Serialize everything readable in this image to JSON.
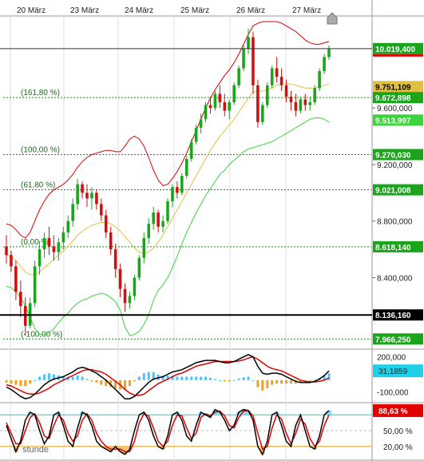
{
  "chart_data": {
    "type": "candlestick",
    "x_labels": [
      "20 März",
      "23 März",
      "24 März",
      "25 März",
      "26 März",
      "27 März"
    ],
    "price_ticks": [
      "8.400,000",
      "8.800,000",
      "9.200,000",
      "9.600,000"
    ],
    "price_range": [
      7900,
      10250
    ],
    "candles": [
      [
        8620,
        8700,
        8500,
        8560
      ],
      [
        8560,
        8590,
        8440,
        8480
      ],
      [
        8480,
        8520,
        8240,
        8300
      ],
      [
        8300,
        8380,
        8120,
        8200
      ],
      [
        8200,
        8260,
        7990,
        8060
      ],
      [
        8060,
        8260,
        8040,
        8220
      ],
      [
        8220,
        8520,
        8190,
        8480
      ],
      [
        8480,
        8660,
        8420,
        8600
      ],
      [
        8600,
        8720,
        8540,
        8680
      ],
      [
        8680,
        8760,
        8560,
        8620
      ],
      [
        8620,
        8700,
        8520,
        8580
      ],
      [
        8580,
        8680,
        8520,
        8650
      ],
      [
        8650,
        8760,
        8600,
        8720
      ],
      [
        8720,
        8840,
        8680,
        8800
      ],
      [
        8800,
        8960,
        8760,
        8920
      ],
      [
        8920,
        9100,
        8880,
        9060
      ],
      [
        9060,
        9080,
        8960,
        9000
      ],
      [
        9000,
        9060,
        8900,
        8960
      ],
      [
        8960,
        9040,
        8880,
        9000
      ],
      [
        9000,
        9020,
        8880,
        8920
      ],
      [
        8920,
        8960,
        8800,
        8840
      ],
      [
        8840,
        8880,
        8680,
        8720
      ],
      [
        8720,
        8760,
        8560,
        8600
      ],
      [
        8600,
        8640,
        8400,
        8460
      ],
      [
        8460,
        8500,
        8260,
        8320
      ],
      [
        8320,
        8360,
        8160,
        8220
      ],
      [
        8220,
        8300,
        8180,
        8270
      ],
      [
        8270,
        8420,
        8240,
        8400
      ],
      [
        8400,
        8560,
        8380,
        8540
      ],
      [
        8540,
        8720,
        8500,
        8680
      ],
      [
        8680,
        8820,
        8640,
        8780
      ],
      [
        8780,
        8900,
        8740,
        8860
      ],
      [
        8860,
        8880,
        8720,
        8760
      ],
      [
        8760,
        8840,
        8720,
        8800
      ],
      [
        8800,
        8960,
        8780,
        8940
      ],
      [
        8940,
        9060,
        8900,
        9040
      ],
      [
        9040,
        9080,
        8960,
        9000
      ],
      [
        9000,
        9140,
        8980,
        9120
      ],
      [
        9120,
        9260,
        9100,
        9240
      ],
      [
        9240,
        9380,
        9220,
        9360
      ],
      [
        9360,
        9480,
        9340,
        9460
      ],
      [
        9460,
        9560,
        9420,
        9520
      ],
      [
        9520,
        9640,
        9500,
        9620
      ],
      [
        9620,
        9680,
        9560,
        9600
      ],
      [
        9600,
        9720,
        9580,
        9700
      ],
      [
        9700,
        9760,
        9600,
        9640
      ],
      [
        9640,
        9700,
        9540,
        9580
      ],
      [
        9580,
        9660,
        9520,
        9640
      ],
      [
        9640,
        9780,
        9620,
        9760
      ],
      [
        9760,
        9900,
        9740,
        9880
      ],
      [
        9880,
        10040,
        9860,
        10020
      ],
      [
        10020,
        10160,
        9980,
        10100
      ],
      [
        10100,
        10140,
        9700,
        9760
      ],
      [
        9760,
        9800,
        9460,
        9500
      ],
      [
        9500,
        9640,
        9480,
        9620
      ],
      [
        9620,
        9780,
        9600,
        9760
      ],
      [
        9760,
        9900,
        9740,
        9880
      ],
      [
        9880,
        9960,
        9780,
        9820
      ],
      [
        9820,
        9880,
        9720,
        9760
      ],
      [
        9760,
        9800,
        9640,
        9680
      ],
      [
        9680,
        9720,
        9580,
        9640
      ],
      [
        9640,
        9700,
        9540,
        9580
      ],
      [
        9580,
        9680,
        9560,
        9660
      ],
      [
        9660,
        9700,
        9580,
        9620
      ],
      [
        9620,
        9680,
        9580,
        9640
      ],
      [
        9640,
        9760,
        9620,
        9740
      ],
      [
        9740,
        9880,
        9720,
        9860
      ],
      [
        9860,
        9980,
        9840,
        9960
      ],
      [
        9960,
        10040,
        9940,
        10019
      ]
    ],
    "bollinger": {
      "upper_color": "#e00000",
      "middle_color": "#e0c040",
      "lower_color": "#3cd43c",
      "upper": [
        8780,
        8770,
        8740,
        8700,
        8680,
        8720,
        8800,
        8880,
        8940,
        8990,
        9020,
        9040,
        9060,
        9090,
        9130,
        9180,
        9220,
        9250,
        9270,
        9280,
        9290,
        9300,
        9300,
        9290,
        9290,
        9330,
        9380,
        9400,
        9380,
        9330,
        9250,
        9160,
        9090,
        9050,
        9060,
        9100,
        9150,
        9210,
        9280,
        9360,
        9440,
        9520,
        9600,
        9670,
        9730,
        9780,
        9830,
        9870,
        9920,
        9980,
        10050,
        10120,
        10180,
        10200,
        10210,
        10210,
        10210,
        10210,
        10200,
        10180,
        10160,
        10140,
        10110,
        10080,
        10060,
        10050,
        10050,
        10060,
        10070
      ],
      "middle": [
        8560,
        8550,
        8520,
        8480,
        8440,
        8420,
        8420,
        8440,
        8470,
        8500,
        8530,
        8560,
        8590,
        8620,
        8660,
        8700,
        8730,
        8750,
        8770,
        8780,
        8790,
        8790,
        8780,
        8760,
        8730,
        8690,
        8650,
        8610,
        8580,
        8570,
        8580,
        8610,
        8650,
        8700,
        8760,
        8820,
        8880,
        8940,
        9000,
        9060,
        9120,
        9180,
        9240,
        9300,
        9350,
        9400,
        9440,
        9480,
        9520,
        9570,
        9620,
        9670,
        9710,
        9720,
        9720,
        9730,
        9740,
        9760,
        9770,
        9770,
        9770,
        9760,
        9750,
        9740,
        9740,
        9740,
        9750,
        9760,
        9770
      ],
      "lower": [
        8340,
        8330,
        8300,
        8260,
        8200,
        8120,
        8040,
        8000,
        8000,
        8010,
        8040,
        8080,
        8120,
        8150,
        8190,
        8220,
        8240,
        8250,
        8270,
        8280,
        8290,
        8280,
        8260,
        8230,
        8170,
        8050,
        7990,
        8000,
        8020,
        8070,
        8140,
        8240,
        8310,
        8350,
        8400,
        8470,
        8550,
        8640,
        8720,
        8790,
        8860,
        8920,
        8980,
        9030,
        9080,
        9130,
        9160,
        9200,
        9230,
        9260,
        9290,
        9310,
        9320,
        9330,
        9340,
        9350,
        9360,
        9380,
        9400,
        9420,
        9440,
        9460,
        9480,
        9500,
        9520,
        9530,
        9530,
        9520,
        9500
      ]
    },
    "fib_levels": [
      {
        "label": "(161,80 %)",
        "value": 9672.898,
        "tag": "9.672,898"
      },
      {
        "label": "(100,00 %)",
        "value": 9270.03,
        "tag": "9.270,030"
      },
      {
        "label": "(61,80 %)",
        "value": 9021.008,
        "tag": "9.021,008"
      },
      {
        "label": "(0,00 %)",
        "value": 8618.14,
        "tag": "8.618,140"
      },
      {
        "label": "(-100,00 %)",
        "value": 7966.25,
        "tag": "7.966,250"
      }
    ],
    "hlines": [
      {
        "value": 10019.4,
        "tag": "10.019,400",
        "color": "#333333"
      },
      {
        "value": 8136.16,
        "tag": "8.136,160",
        "color": "#000000"
      }
    ],
    "price_tags": [
      {
        "value": 10019.4,
        "text": "10.019,400",
        "bg": "#1aa51a"
      },
      {
        "value": 9751.109,
        "text": "9.751,109",
        "bg": "#e0c040"
      },
      {
        "value": 9672.898,
        "text": "9.672,898",
        "bg": "#1aa51a"
      },
      {
        "value": 9513.997,
        "text": "9.513,997",
        "bg": "#3cd43c"
      },
      {
        "value": 9270.03,
        "text": "9.270,030",
        "bg": "#1aa51a"
      },
      {
        "value": 9021.008,
        "text": "9.021,008",
        "bg": "#1aa51a"
      },
      {
        "value": 8618.14,
        "text": "8.618,140",
        "bg": "#1aa51a"
      },
      {
        "value": 8136.16,
        "text": "8.136,160",
        "bg": "#000000"
      },
      {
        "value": 7966.25,
        "text": "7.966,250",
        "bg": "#1aa51a"
      }
    ],
    "macd": {
      "ticks": [
        "200,000",
        "-100,000"
      ],
      "tick_values": [
        200,
        -100
      ],
      "range": [
        -180,
        260
      ],
      "tag": "31,1859",
      "tag_bg": "#1fd0e8",
      "macd_line": [
        -60,
        -80,
        -110,
        -140,
        -160,
        -150,
        -120,
        -80,
        -40,
        -10,
        10,
        20,
        30,
        50,
        70,
        100,
        110,
        100,
        80,
        60,
        30,
        0,
        -40,
        -80,
        -120,
        -160,
        -160,
        -140,
        -100,
        -60,
        -20,
        10,
        20,
        30,
        50,
        70,
        80,
        90,
        110,
        130,
        150,
        160,
        170,
        170,
        170,
        160,
        150,
        150,
        160,
        180,
        200,
        220,
        200,
        120,
        60,
        50,
        60,
        60,
        50,
        30,
        10,
        -10,
        -20,
        -20,
        -20,
        -10,
        10,
        40,
        80
      ],
      "signal_line": [
        -40,
        -50,
        -70,
        -90,
        -110,
        -120,
        -120,
        -110,
        -90,
        -70,
        -40,
        -20,
        0,
        20,
        40,
        60,
        80,
        90,
        90,
        80,
        70,
        50,
        20,
        -10,
        -40,
        -80,
        -110,
        -130,
        -130,
        -120,
        -90,
        -60,
        -30,
        -10,
        10,
        30,
        50,
        60,
        80,
        100,
        120,
        130,
        140,
        150,
        160,
        160,
        160,
        160,
        160,
        165,
        175,
        190,
        200,
        180,
        150,
        120,
        100,
        90,
        80,
        60,
        40,
        20,
        0,
        -10,
        -15,
        -15,
        -10,
        0,
        20
      ],
      "hist": [
        -20,
        -30,
        -40,
        -50,
        -50,
        -30,
        0,
        30,
        50,
        60,
        50,
        40,
        30,
        30,
        30,
        40,
        30,
        10,
        -10,
        -20,
        -40,
        -50,
        -60,
        -70,
        -80,
        -80,
        -50,
        -10,
        30,
        60,
        70,
        70,
        50,
        40,
        40,
        40,
        30,
        30,
        30,
        30,
        30,
        30,
        30,
        20,
        10,
        0,
        -10,
        -10,
        0,
        15,
        25,
        30,
        0,
        -60,
        -90,
        -70,
        -40,
        -30,
        -30,
        -30,
        -30,
        -30,
        -20,
        -10,
        -5,
        5,
        20,
        40,
        60
      ],
      "macd_color": "#000000",
      "signal_color": "#e00000",
      "hist_pos_color": "#4fc3f7",
      "hist_neg_color": "#f0a020"
    },
    "stochastic": {
      "label": "stunde",
      "ticks": [
        "50,00 %",
        "20,00 %"
      ],
      "tick_values": [
        50,
        20
      ],
      "range": [
        0,
        100
      ],
      "tag": "88,63 %",
      "tag_bg": "#e00000",
      "upper_line": 80,
      "lower_line": 20,
      "k": [
        60,
        35,
        10,
        30,
        70,
        85,
        80,
        50,
        25,
        40,
        80,
        85,
        60,
        30,
        20,
        55,
        85,
        80,
        60,
        30,
        20,
        15,
        10,
        20,
        10,
        5,
        15,
        50,
        80,
        85,
        70,
        40,
        20,
        15,
        40,
        80,
        85,
        70,
        40,
        30,
        60,
        85,
        80,
        75,
        90,
        85,
        70,
        50,
        60,
        85,
        90,
        88,
        70,
        20,
        5,
        30,
        80,
        85,
        60,
        30,
        20,
        60,
        80,
        50,
        20,
        15,
        40,
        80,
        88
      ],
      "d": [
        65,
        45,
        25,
        25,
        50,
        75,
        82,
        65,
        40,
        35,
        60,
        80,
        70,
        45,
        30,
        40,
        70,
        82,
        70,
        45,
        30,
        20,
        15,
        15,
        15,
        10,
        10,
        30,
        65,
        82,
        78,
        55,
        30,
        20,
        30,
        60,
        80,
        78,
        55,
        35,
        45,
        75,
        82,
        78,
        85,
        87,
        78,
        60,
        55,
        75,
        87,
        88,
        78,
        45,
        15,
        20,
        55,
        80,
        72,
        45,
        25,
        45,
        72,
        62,
        35,
        20,
        30,
        60,
        80
      ],
      "k_color": "#000000",
      "d_color": "#e00000"
    }
  }
}
